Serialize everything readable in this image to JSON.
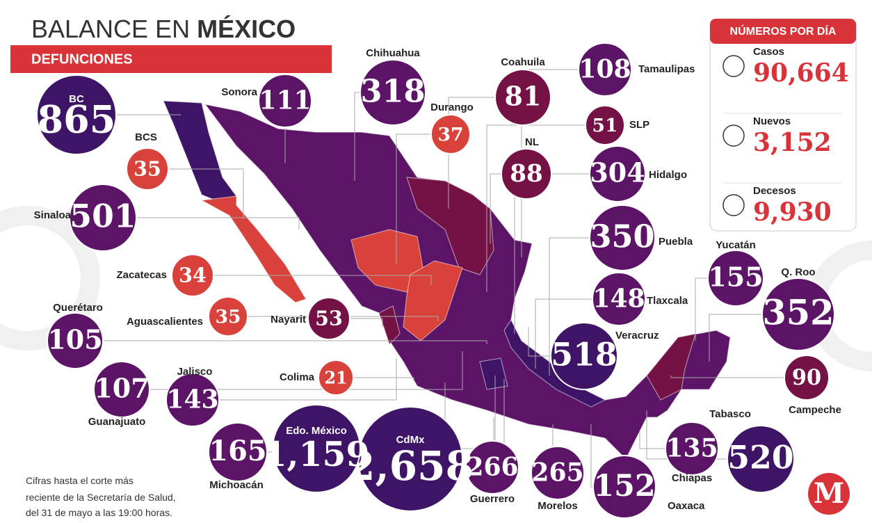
{
  "header": {
    "title_light": "BALANCE EN ",
    "title_bold": "MÉXICO",
    "subtitle": "DEFUNCIONES"
  },
  "states": [
    {
      "name": "BC",
      "value": "865",
      "color": "#3d1466"
    },
    {
      "name": "Sonora",
      "value": "111",
      "color": "#5b1466"
    },
    {
      "name": "Chihuahua",
      "value": "318",
      "color": "#5b1466"
    },
    {
      "name": "Durango",
      "value": "37",
      "color": "#d9423a"
    },
    {
      "name": "Coahuila",
      "value": "81",
      "color": "#751245"
    },
    {
      "name": "Tamaulipas",
      "value": "108",
      "color": "#5b1466"
    },
    {
      "name": "SLP",
      "value": "51",
      "color": "#751245"
    },
    {
      "name": "NL",
      "value": "88",
      "color": "#751245"
    },
    {
      "name": "Hidalgo",
      "value": "304",
      "color": "#5b1466"
    },
    {
      "name": "Puebla",
      "value": "350",
      "color": "#5b1466"
    },
    {
      "name": "Tlaxcala",
      "value": "148",
      "color": "#5b1466"
    },
    {
      "name": "Veracruz",
      "value": "518",
      "color": "#3d1466"
    },
    {
      "name": "Yucatán",
      "value": "155",
      "color": "#5b1466"
    },
    {
      "name": "Q. Roo",
      "value": "352",
      "color": "#5b1466"
    },
    {
      "name": "Campeche",
      "value": "90",
      "color": "#751245"
    },
    {
      "name": "Tabasco",
      "value": "520",
      "color": "#3d1466"
    },
    {
      "name": "Chiapas",
      "value": "135",
      "color": "#5b1466"
    },
    {
      "name": "Oaxaca",
      "value": "152",
      "color": "#5b1466"
    },
    {
      "name": "Morelos",
      "value": "265",
      "color": "#5b1466"
    },
    {
      "name": "Guerrero",
      "value": "266",
      "color": "#5b1466"
    },
    {
      "name": "CdMx",
      "value": "2,658",
      "color": "#3d1466"
    },
    {
      "name": "Edo. México",
      "value": "1,159",
      "color": "#3d1466"
    },
    {
      "name": "Michoacán",
      "value": "165",
      "color": "#5b1466"
    },
    {
      "name": "Colima",
      "value": "21",
      "color": "#d9423a"
    },
    {
      "name": "Jalisco",
      "value": "143",
      "color": "#5b1466"
    },
    {
      "name": "Guanajuato",
      "value": "107",
      "color": "#5b1466"
    },
    {
      "name": "Querétaro",
      "value": "105",
      "color": "#5b1466"
    },
    {
      "name": "Aguascalientes",
      "value": "35",
      "color": "#d9423a"
    },
    {
      "name": "Nayarit",
      "value": "53",
      "color": "#751245"
    },
    {
      "name": "Zacatecas",
      "value": "34",
      "color": "#d9423a"
    },
    {
      "name": "Sinaloa",
      "value": "501",
      "color": "#5b1466"
    },
    {
      "name": "BCS",
      "value": "35",
      "color": "#d9423a"
    }
  ],
  "daily": {
    "title": "NÚMEROS POR DÍA",
    "items": [
      {
        "label": "Casos",
        "value": "90,664"
      },
      {
        "label": "Nuevos",
        "value": "3,152"
      },
      {
        "label": "Decesos",
        "value": "9,930"
      }
    ]
  },
  "footnote": [
    "Cifras hasta el corte más",
    "reciente de la Secretaría de Salud,",
    "del 31 de mayo a las 19:00 horas."
  ],
  "logo": "M"
}
